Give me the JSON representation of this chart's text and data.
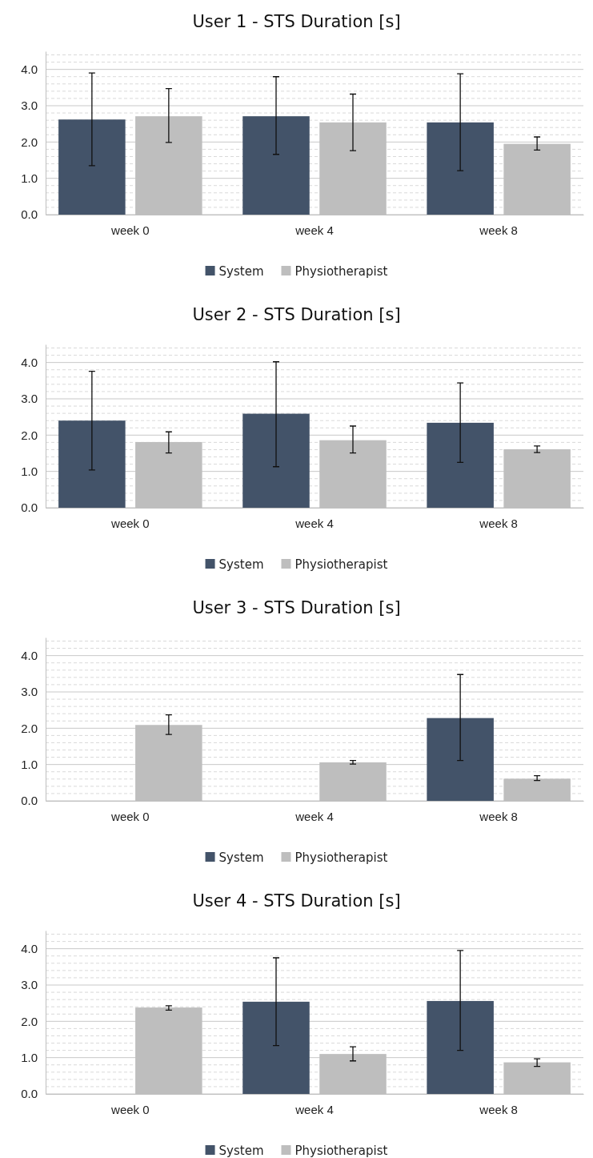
{
  "chart_data": [
    {
      "type": "bar",
      "title": "User 1 - STS Duration [s]",
      "categories": [
        "week 0",
        "week 4",
        "week 8"
      ],
      "ylim": [
        0,
        4.5
      ],
      "yticks": [
        {
          "value": 0,
          "label": "0.0"
        },
        {
          "value": 0.2,
          "label": null
        },
        {
          "value": 0.4,
          "label": null
        },
        {
          "value": 0.6,
          "label": null
        },
        {
          "value": 0.8,
          "label": null
        },
        {
          "value": 1,
          "label": "1.0"
        },
        {
          "value": 1.2,
          "label": null
        },
        {
          "value": 1.4,
          "label": null
        },
        {
          "value": 1.6,
          "label": null
        },
        {
          "value": 1.8,
          "label": null
        },
        {
          "value": 2,
          "label": "2.0"
        },
        {
          "value": 2.2,
          "label": null
        },
        {
          "value": 2.4,
          "label": null
        },
        {
          "value": 2.6,
          "label": null
        },
        {
          "value": 2.8,
          "label": null
        },
        {
          "value": 3,
          "label": "3.0"
        },
        {
          "value": 3.2,
          "label": null
        },
        {
          "value": 3.4,
          "label": null
        },
        {
          "value": 3.6,
          "label": null
        },
        {
          "value": 3.8,
          "label": null
        },
        {
          "value": 4,
          "label": "4.0"
        },
        {
          "value": 4.2,
          "label": null
        },
        {
          "value": 4.4,
          "label": null
        }
      ],
      "grid": true,
      "legend": "bottom",
      "series": [
        {
          "name": "System",
          "color": "#435369",
          "values": [
            2.62,
            2.71,
            2.54
          ],
          "errors": [
            [
              1.35,
              3.9
            ],
            [
              1.66,
              3.8
            ],
            [
              1.21,
              3.88
            ]
          ]
        },
        {
          "name": "Physiotherapist",
          "color": "#bebebe",
          "values": [
            2.71,
            2.54,
            1.95
          ],
          "errors": [
            [
              1.99,
              3.47
            ],
            [
              1.76,
              3.32
            ],
            [
              1.78,
              2.14
            ]
          ]
        }
      ]
    },
    {
      "type": "bar",
      "title": "User 2 - STS Duration [s]",
      "categories": [
        "week 0",
        "week 4",
        "week 8"
      ],
      "ylim": [
        0,
        4.5
      ],
      "yticks": [
        {
          "value": 0,
          "label": "0.0"
        },
        {
          "value": 0.2,
          "label": null
        },
        {
          "value": 0.4,
          "label": null
        },
        {
          "value": 0.6,
          "label": null
        },
        {
          "value": 0.8,
          "label": null
        },
        {
          "value": 1,
          "label": "1.0"
        },
        {
          "value": 1.2,
          "label": null
        },
        {
          "value": 1.4,
          "label": null
        },
        {
          "value": 1.6,
          "label": null
        },
        {
          "value": 1.8,
          "label": null
        },
        {
          "value": 2,
          "label": "2.0"
        },
        {
          "value": 2.2,
          "label": null
        },
        {
          "value": 2.4,
          "label": null
        },
        {
          "value": 2.6,
          "label": null
        },
        {
          "value": 2.8,
          "label": null
        },
        {
          "value": 3,
          "label": "3.0"
        },
        {
          "value": 3.2,
          "label": null
        },
        {
          "value": 3.4,
          "label": null
        },
        {
          "value": 3.6,
          "label": null
        },
        {
          "value": 3.8,
          "label": null
        },
        {
          "value": 4,
          "label": "4.0"
        },
        {
          "value": 4.2,
          "label": null
        },
        {
          "value": 4.4,
          "label": null
        }
      ],
      "grid": true,
      "legend": "bottom",
      "series": [
        {
          "name": "System",
          "color": "#435369",
          "values": [
            2.4,
            2.59,
            2.34
          ],
          "errors": [
            [
              1.04,
              3.76
            ],
            [
              1.13,
              4.02
            ],
            [
              1.25,
              3.44
            ]
          ]
        },
        {
          "name": "Physiotherapist",
          "color": "#bebebe",
          "values": [
            1.81,
            1.86,
            1.61
          ],
          "errors": [
            [
              1.51,
              2.09
            ],
            [
              1.51,
              2.25
            ],
            [
              1.52,
              1.7
            ]
          ]
        }
      ]
    },
    {
      "type": "bar",
      "title": "User 3 - STS Duration [s]",
      "categories": [
        "week 0",
        "week 4",
        "week 8"
      ],
      "ylim": [
        0,
        4.5
      ],
      "yticks": [
        {
          "value": 0,
          "label": "0.0"
        },
        {
          "value": 0.2,
          "label": null
        },
        {
          "value": 0.4,
          "label": null
        },
        {
          "value": 0.6,
          "label": null
        },
        {
          "value": 0.8,
          "label": null
        },
        {
          "value": 1,
          "label": "1.0"
        },
        {
          "value": 1.2,
          "label": null
        },
        {
          "value": 1.4,
          "label": null
        },
        {
          "value": 1.6,
          "label": null
        },
        {
          "value": 1.8,
          "label": null
        },
        {
          "value": 2,
          "label": "2.0"
        },
        {
          "value": 2.2,
          "label": null
        },
        {
          "value": 2.4,
          "label": null
        },
        {
          "value": 2.6,
          "label": null
        },
        {
          "value": 2.8,
          "label": null
        },
        {
          "value": 3,
          "label": "3.0"
        },
        {
          "value": 3.2,
          "label": null
        },
        {
          "value": 3.4,
          "label": null
        },
        {
          "value": 3.6,
          "label": null
        },
        {
          "value": 3.8,
          "label": null
        },
        {
          "value": 4,
          "label": "4.0"
        },
        {
          "value": 4.2,
          "label": null
        },
        {
          "value": 4.4,
          "label": null
        }
      ],
      "grid": true,
      "legend": "bottom",
      "series": [
        {
          "name": "System",
          "color": "#435369",
          "values": [
            null,
            null,
            2.28
          ],
          "errors": [
            null,
            null,
            [
              1.11,
              3.48
            ]
          ]
        },
        {
          "name": "Physiotherapist",
          "color": "#bebebe",
          "values": [
            2.09,
            1.06,
            0.61
          ],
          "errors": [
            [
              1.83,
              2.37
            ],
            [
              1.01,
              1.11
            ],
            [
              0.56,
              0.69
            ]
          ]
        }
      ]
    },
    {
      "type": "bar",
      "title": "User 4 - STS Duration [s]",
      "categories": [
        "week 0",
        "week 4",
        "week 8"
      ],
      "ylim": [
        0,
        4.5
      ],
      "yticks": [
        {
          "value": 0,
          "label": "0.0"
        },
        {
          "value": 0.2,
          "label": null
        },
        {
          "value": 0.4,
          "label": null
        },
        {
          "value": 0.6,
          "label": null
        },
        {
          "value": 0.8,
          "label": null
        },
        {
          "value": 1,
          "label": "1.0"
        },
        {
          "value": 1.2,
          "label": null
        },
        {
          "value": 1.4,
          "label": null
        },
        {
          "value": 1.6,
          "label": null
        },
        {
          "value": 1.8,
          "label": null
        },
        {
          "value": 2,
          "label": "2.0"
        },
        {
          "value": 2.2,
          "label": null
        },
        {
          "value": 2.4,
          "label": null
        },
        {
          "value": 2.6,
          "label": null
        },
        {
          "value": 2.8,
          "label": null
        },
        {
          "value": 3,
          "label": "3.0"
        },
        {
          "value": 3.2,
          "label": null
        },
        {
          "value": 3.4,
          "label": null
        },
        {
          "value": 3.6,
          "label": null
        },
        {
          "value": 3.8,
          "label": null
        },
        {
          "value": 4,
          "label": "4.0"
        },
        {
          "value": 4.2,
          "label": null
        },
        {
          "value": 4.4,
          "label": null
        }
      ],
      "grid": true,
      "legend": "bottom",
      "series": [
        {
          "name": "System",
          "color": "#435369",
          "values": [
            null,
            2.54,
            2.56
          ],
          "errors": [
            null,
            [
              1.33,
              3.75
            ],
            [
              1.2,
              3.95
            ]
          ]
        },
        {
          "name": "Physiotherapist",
          "color": "#bebebe",
          "values": [
            2.38,
            1.1,
            0.87
          ],
          "errors": [
            [
              2.31,
              2.43
            ],
            [
              0.91,
              1.3
            ],
            [
              0.76,
              0.97
            ]
          ]
        }
      ]
    }
  ]
}
